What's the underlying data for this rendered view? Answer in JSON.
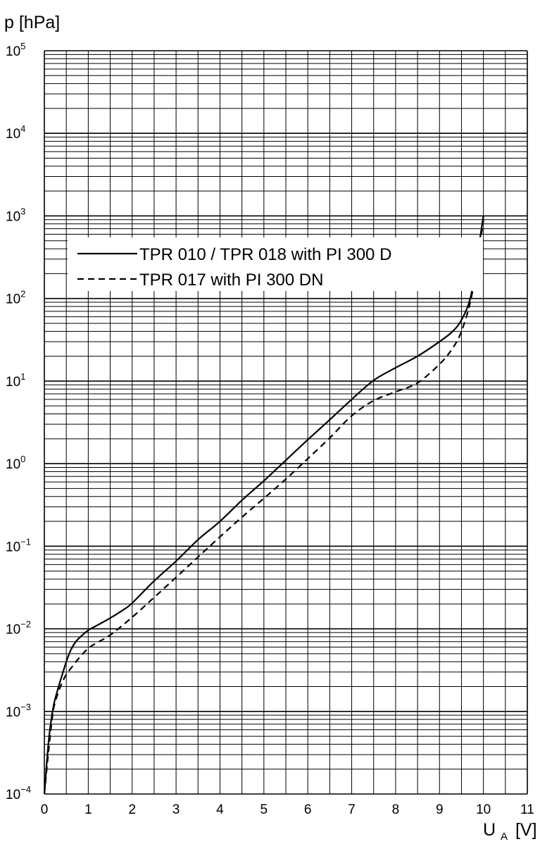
{
  "chart_data": {
    "type": "line",
    "title": "",
    "ylabel": "p [hPa]",
    "xlabel": {
      "base": "U",
      "subscript": "A",
      "unit": "[V]"
    },
    "xlim": [
      0,
      11
    ],
    "ylim": [
      0.0001,
      100000
    ],
    "yscale": "log",
    "grid": true,
    "x_ticks": [
      "0",
      "1",
      "2",
      "3",
      "4",
      "5",
      "6",
      "7",
      "8",
      "9",
      "10",
      "11"
    ],
    "y_ticks": [
      {
        "base": "10",
        "exp": "−4",
        "value": 0.0001
      },
      {
        "base": "10",
        "exp": "−3",
        "value": 0.001
      },
      {
        "base": "10",
        "exp": "−2",
        "value": 0.01
      },
      {
        "base": "10",
        "exp": "−1",
        "value": 0.1
      },
      {
        "base": "10",
        "exp": "0",
        "value": 1
      },
      {
        "base": "10",
        "exp": "1",
        "value": 10
      },
      {
        "base": "10",
        "exp": "2",
        "value": 100
      },
      {
        "base": "10",
        "exp": "3",
        "value": 1000
      },
      {
        "base": "10",
        "exp": "4",
        "value": 10000
      },
      {
        "base": "10",
        "exp": "5",
        "value": 100000
      }
    ],
    "legend_position": "upper-left inside",
    "series": [
      {
        "name": "TPR 010 / TPR 018 with PI 300 D",
        "style": "solid",
        "x": [
          0.0,
          0.1,
          0.2,
          0.3,
          0.4,
          0.5,
          0.6,
          0.7,
          0.8,
          1.0,
          1.2,
          1.5,
          1.8,
          2.0,
          2.5,
          3.0,
          3.5,
          4.0,
          4.5,
          5.0,
          5.5,
          6.0,
          6.5,
          7.0,
          7.5,
          8.0,
          8.5,
          9.0,
          9.3,
          9.5,
          9.7,
          9.85,
          10.0
        ],
        "y": [
          0.0001,
          0.00045,
          0.0011,
          0.0018,
          0.0027,
          0.004,
          0.0055,
          0.0068,
          0.0078,
          0.0096,
          0.011,
          0.0135,
          0.017,
          0.0205,
          0.038,
          0.066,
          0.12,
          0.2,
          0.36,
          0.62,
          1.1,
          1.95,
          3.4,
          6.0,
          10.2,
          14.5,
          20.0,
          30.0,
          40.0,
          55.0,
          100.0,
          300.0,
          1000.0
        ]
      },
      {
        "name": "TPR 017 with PI 300 DN",
        "style": "dashed",
        "x": [
          0.0,
          0.1,
          0.2,
          0.3,
          0.4,
          0.5,
          0.6,
          0.8,
          1.0,
          1.2,
          1.5,
          2.0,
          2.5,
          3.0,
          3.5,
          4.0,
          4.5,
          5.0,
          5.5,
          6.0,
          6.5,
          7.0,
          7.5,
          8.0,
          8.5,
          9.0,
          9.3,
          9.5,
          9.7,
          9.85,
          10.0
        ],
        "y": [
          0.0001,
          0.00035,
          0.001,
          0.0016,
          0.0022,
          0.0028,
          0.0033,
          0.0045,
          0.0058,
          0.0068,
          0.0084,
          0.0138,
          0.024,
          0.042,
          0.074,
          0.13,
          0.225,
          0.38,
          0.65,
          1.15,
          2.05,
          3.8,
          5.8,
          7.4,
          9.5,
          16.0,
          25.0,
          40.0,
          90.0,
          250.0,
          900.0
        ]
      }
    ]
  }
}
